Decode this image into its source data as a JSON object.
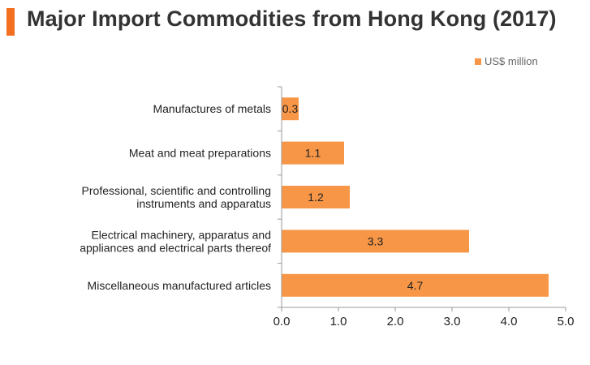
{
  "title": "Major Import Commodities from Hong Kong (2017)",
  "legend_label": "US$ million",
  "colors": {
    "accent": "#f37021",
    "bar": "#f79646",
    "axis": "#9a9a9a"
  },
  "chart_data": {
    "type": "bar",
    "orientation": "horizontal",
    "title": "Major Import Commodities from Hong Kong (2017)",
    "categories": [
      [
        "Manufactures of metals"
      ],
      [
        "Meat and meat preparations"
      ],
      [
        "Professional, scientific and controlling",
        "instruments and apparatus"
      ],
      [
        "Electrical machinery, apparatus and",
        "appliances and electrical parts thereof"
      ],
      [
        "Miscellaneous manufactured articles"
      ]
    ],
    "series": [
      {
        "name": "US$ million",
        "values": [
          0.3,
          1.1,
          1.2,
          3.3,
          4.7
        ],
        "data_labels": [
          "0.3",
          "1.1",
          "1.2",
          "3.3",
          "4.7"
        ]
      }
    ],
    "xlim": [
      0,
      5
    ],
    "x_ticks": [
      "0.0",
      "1.0",
      "2.0",
      "3.0",
      "4.0",
      "5.0"
    ],
    "grid": false,
    "legend_position": "top-right"
  }
}
